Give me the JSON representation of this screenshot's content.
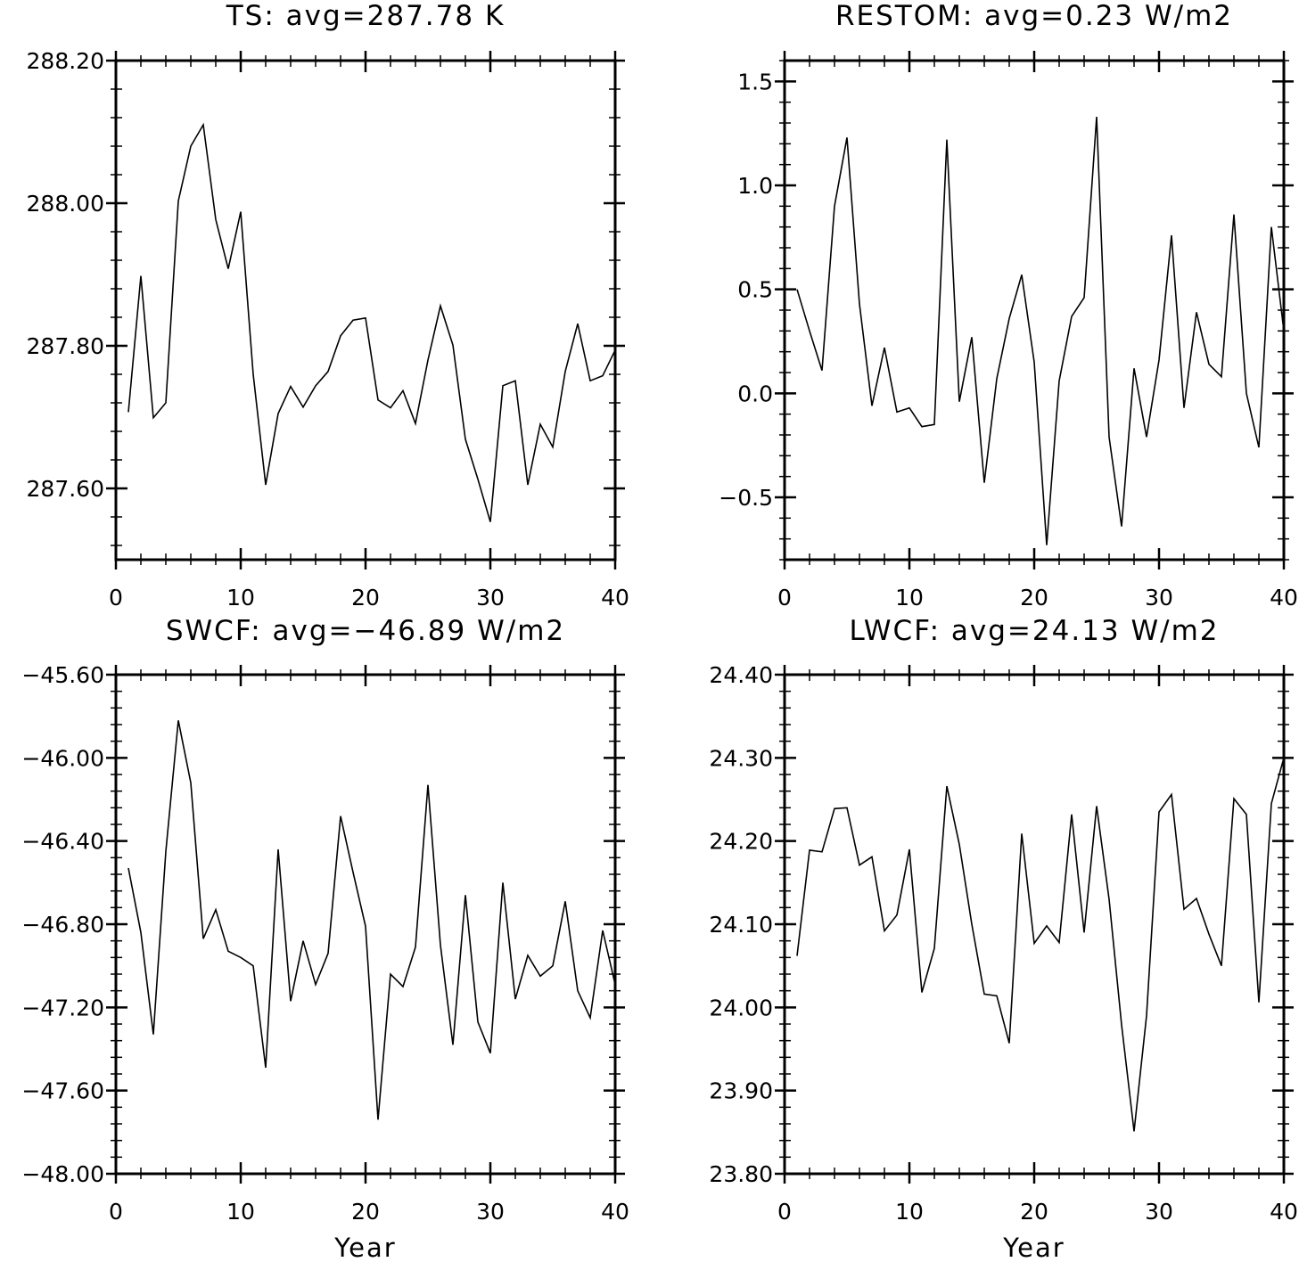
{
  "chart_data": [
    {
      "type": "line",
      "title": "TS: avg=287.78 K",
      "xlabel": "",
      "ylabel": "",
      "xlim": [
        0,
        40
      ],
      "ylim": [
        287.5,
        288.2
      ],
      "xticks": [
        0,
        10,
        20,
        30,
        40
      ],
      "xtick_labels": [
        "0",
        "10",
        "20",
        "30",
        "40"
      ],
      "yticks": [
        287.6,
        287.8,
        288.0,
        288.2
      ],
      "ytick_labels": [
        "287.60",
        "287.80",
        "288.00",
        "288.20"
      ],
      "grid": false,
      "x": [
        1,
        2,
        3,
        4,
        5,
        6,
        7,
        8,
        9,
        10,
        11,
        12,
        13,
        14,
        15,
        16,
        17,
        18,
        19,
        20,
        21,
        22,
        23,
        24,
        25,
        26,
        27,
        28,
        29,
        30,
        31,
        32,
        33,
        34,
        35,
        36,
        37,
        38,
        39,
        40
      ],
      "values": [
        287.707,
        287.898,
        287.699,
        287.72,
        288.003,
        288.08,
        288.11,
        287.977,
        287.908,
        287.988,
        287.76,
        287.605,
        287.705,
        287.743,
        287.714,
        287.744,
        287.764,
        287.814,
        287.836,
        287.839,
        287.724,
        287.713,
        287.737,
        287.691,
        287.78,
        287.856,
        287.801,
        287.669,
        287.613,
        287.553,
        287.744,
        287.751,
        287.605,
        287.69,
        287.658,
        287.764,
        287.831,
        287.751,
        287.758,
        287.794
      ]
    },
    {
      "type": "line",
      "title": "RESTOM: avg=0.23 W/m2",
      "xlabel": "",
      "ylabel": "",
      "xlim": [
        0,
        40
      ],
      "ylim": [
        -0.8,
        1.6
      ],
      "xticks": [
        0,
        10,
        20,
        30,
        40
      ],
      "xtick_labels": [
        "0",
        "10",
        "20",
        "30",
        "40"
      ],
      "yticks": [
        -0.5,
        0.0,
        0.5,
        1.0,
        1.5
      ],
      "ytick_labels": [
        "−0.5",
        "0.0",
        "0.5",
        "1.0",
        "1.5"
      ],
      "grid": false,
      "x": [
        1,
        2,
        3,
        4,
        5,
        6,
        7,
        8,
        9,
        10,
        11,
        12,
        13,
        14,
        15,
        16,
        17,
        18,
        19,
        20,
        21,
        22,
        23,
        24,
        25,
        26,
        27,
        28,
        29,
        30,
        31,
        32,
        33,
        34,
        35,
        36,
        37,
        38,
        39,
        40
      ],
      "values": [
        0.5,
        0.3,
        0.11,
        0.9,
        1.23,
        0.43,
        -0.06,
        0.22,
        -0.09,
        -0.07,
        -0.16,
        -0.15,
        1.22,
        -0.04,
        0.27,
        -0.43,
        0.07,
        0.36,
        0.57,
        0.15,
        -0.73,
        0.06,
        0.37,
        0.46,
        1.33,
        -0.21,
        -0.64,
        0.12,
        -0.21,
        0.16,
        0.76,
        -0.07,
        0.39,
        0.14,
        0.08,
        0.86,
        0.0,
        -0.26,
        0.8,
        0.3
      ]
    },
    {
      "type": "line",
      "title": "SWCF: avg=−46.89 W/m2",
      "xlabel": "Year",
      "ylabel": "",
      "xlim": [
        0,
        40
      ],
      "ylim": [
        -48.0,
        -45.6
      ],
      "xticks": [
        0,
        10,
        20,
        30,
        40
      ],
      "xtick_labels": [
        "0",
        "10",
        "20",
        "30",
        "40"
      ],
      "yticks": [
        -48.0,
        -47.6,
        -47.2,
        -46.8,
        -46.4,
        -46.0,
        -45.6
      ],
      "ytick_labels": [
        "−48.00",
        "−47.60",
        "−47.20",
        "−46.80",
        "−46.40",
        "−46.00",
        "−45.60"
      ],
      "grid": false,
      "x": [
        1,
        2,
        3,
        4,
        5,
        6,
        7,
        8,
        9,
        10,
        11,
        12,
        13,
        14,
        15,
        16,
        17,
        18,
        19,
        20,
        21,
        22,
        23,
        24,
        25,
        26,
        27,
        28,
        29,
        30,
        31,
        32,
        33,
        34,
        35,
        36,
        37,
        38,
        39,
        40
      ],
      "values": [
        -46.53,
        -46.84,
        -47.33,
        -46.45,
        -45.82,
        -46.12,
        -46.87,
        -46.73,
        -46.93,
        -46.96,
        -47.0,
        -47.49,
        -46.44,
        -47.17,
        -46.88,
        -47.09,
        -46.94,
        -46.28,
        -46.55,
        -46.81,
        -47.74,
        -47.04,
        -47.1,
        -46.91,
        -46.13,
        -46.9,
        -47.38,
        -46.66,
        -47.27,
        -47.42,
        -46.6,
        -47.16,
        -46.95,
        -47.05,
        -47.0,
        -46.69,
        -47.12,
        -47.25,
        -46.83,
        -47.09
      ]
    },
    {
      "type": "line",
      "title": "LWCF: avg=24.13 W/m2",
      "xlabel": "Year",
      "ylabel": "",
      "xlim": [
        0,
        40
      ],
      "ylim": [
        23.8,
        24.4
      ],
      "xticks": [
        0,
        10,
        20,
        30,
        40
      ],
      "xtick_labels": [
        "0",
        "10",
        "20",
        "30",
        "40"
      ],
      "yticks": [
        23.8,
        23.9,
        24.0,
        24.1,
        24.2,
        24.3,
        24.4
      ],
      "ytick_labels": [
        "23.80",
        "23.90",
        "24.00",
        "24.10",
        "24.20",
        "24.30",
        "24.40"
      ],
      "grid": false,
      "x": [
        1,
        2,
        3,
        4,
        5,
        6,
        7,
        8,
        9,
        10,
        11,
        12,
        13,
        14,
        15,
        16,
        17,
        18,
        19,
        20,
        21,
        22,
        23,
        24,
        25,
        26,
        27,
        28,
        29,
        30,
        31,
        32,
        33,
        34,
        35,
        36,
        37,
        38,
        39,
        40
      ],
      "values": [
        24.062,
        24.189,
        24.187,
        24.239,
        24.24,
        24.171,
        24.181,
        24.092,
        24.111,
        24.19,
        24.018,
        24.071,
        24.266,
        24.196,
        24.1,
        24.016,
        24.014,
        23.957,
        24.209,
        24.077,
        24.098,
        24.078,
        24.232,
        24.09,
        24.242,
        24.13,
        23.979,
        23.851,
        23.99,
        24.235,
        24.256,
        24.118,
        24.131,
        24.088,
        24.05,
        24.251,
        24.232,
        24.006,
        24.245,
        24.3
      ]
    }
  ]
}
